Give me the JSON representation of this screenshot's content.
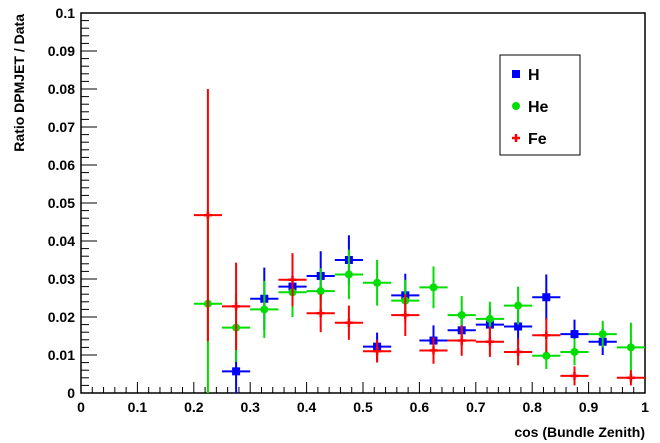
{
  "chart_data": {
    "type": "scatter",
    "title": "",
    "xlabel": "cos (Bundle Zenith)",
    "ylabel": "Ratio DPMJET / Data",
    "xlim": [
      0,
      1
    ],
    "ylim": [
      0,
      0.1
    ],
    "x_ticks": [
      "0",
      "0.1",
      "0.2",
      "0.3",
      "0.4",
      "0.5",
      "0.6",
      "0.7",
      "0.8",
      "0.9",
      "1"
    ],
    "y_ticks": [
      "0",
      "0.01",
      "0.02",
      "0.03",
      "0.04",
      "0.05",
      "0.06",
      "0.07",
      "0.08",
      "0.09",
      "0.1"
    ],
    "grid": false,
    "legend_position": "top-right",
    "bin_half_width": 0.025,
    "series": [
      {
        "name": "H",
        "color": "#0000ff",
        "marker": "square",
        "x": [
          0.275,
          0.325,
          0.375,
          0.425,
          0.475,
          0.525,
          0.575,
          0.625,
          0.675,
          0.725,
          0.775,
          0.825,
          0.875,
          0.925
        ],
        "y": [
          0.0057,
          0.0248,
          0.028,
          0.0308,
          0.035,
          0.0122,
          0.0257,
          0.0138,
          0.0165,
          0.018,
          0.0175,
          0.0252,
          0.0155,
          0.0135
        ],
        "err": [
          0.0057,
          0.0082,
          0.004,
          0.0065,
          0.0065,
          0.0037,
          0.0057,
          0.004,
          0.004,
          0.0045,
          0.005,
          0.006,
          0.0038,
          0.0035
        ]
      },
      {
        "name": "He",
        "color": "#00dd00",
        "marker": "circle",
        "x": [
          0.225,
          0.275,
          0.325,
          0.375,
          0.425,
          0.475,
          0.525,
          0.575,
          0.625,
          0.675,
          0.725,
          0.775,
          0.825,
          0.875,
          0.925,
          0.975
        ],
        "y": [
          0.0235,
          0.0172,
          0.022,
          0.0265,
          0.0268,
          0.0312,
          0.029,
          0.0243,
          0.0278,
          0.0205,
          0.0195,
          0.023,
          0.0098,
          0.0108,
          0.0155,
          0.012
        ],
        "err": [
          0.0235,
          0.009,
          0.0075,
          0.0065,
          0.006,
          0.0065,
          0.006,
          0.0055,
          0.0055,
          0.005,
          0.0045,
          0.005,
          0.0035,
          0.0035,
          0.0035,
          0.0065
        ]
      },
      {
        "name": "Fe",
        "color": "#ff0000",
        "marker": "cross",
        "x": [
          0.225,
          0.275,
          0.375,
          0.425,
          0.475,
          0.525,
          0.575,
          0.625,
          0.675,
          0.725,
          0.775,
          0.825,
          0.875,
          0.975
        ],
        "y": [
          0.0468,
          0.0228,
          0.0298,
          0.021,
          0.0185,
          0.011,
          0.0205,
          0.0112,
          0.0138,
          0.0135,
          0.0108,
          0.0152,
          0.0045,
          0.004
        ],
        "err": [
          0.0332,
          0.0115,
          0.007,
          0.005,
          0.0045,
          0.003,
          0.0055,
          0.0035,
          0.004,
          0.004,
          0.0035,
          0.0045,
          0.0025,
          0.002
        ]
      }
    ]
  }
}
